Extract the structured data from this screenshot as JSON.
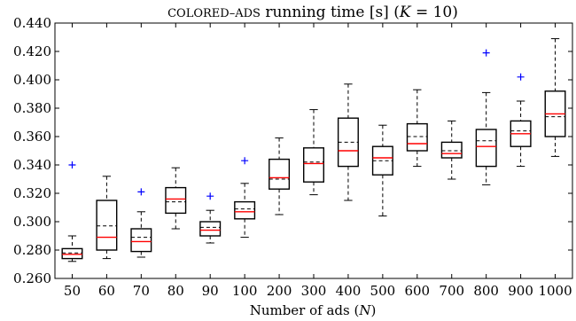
{
  "chart_data": {
    "type": "box",
    "title_prefix": "COLORED–ADS",
    "title_suffix": " running time [s] (",
    "title_var": "K",
    "title_eq": " = 10)",
    "xlabel_prefix": "Number of ads (",
    "xlabel_var": "N",
    "xlabel_suffix": ")",
    "ylim": [
      0.26,
      0.44
    ],
    "yticks": [
      "0.260",
      "0.280",
      "0.300",
      "0.320",
      "0.340",
      "0.360",
      "0.380",
      "0.400",
      "0.420",
      "0.440"
    ],
    "categories": [
      "50",
      "60",
      "70",
      "80",
      "90",
      "100",
      "200",
      "300",
      "400",
      "500",
      "600",
      "700",
      "800",
      "900",
      "1000"
    ],
    "boxes": [
      {
        "category": "50",
        "whisker_low": 0.272,
        "q1": 0.274,
        "median": 0.277,
        "mean": 0.278,
        "q3": 0.281,
        "whisker_high": 0.29,
        "outliers": [
          0.34
        ]
      },
      {
        "category": "60",
        "whisker_low": 0.274,
        "q1": 0.28,
        "median": 0.289,
        "mean": 0.297,
        "q3": 0.315,
        "whisker_high": 0.332,
        "outliers": []
      },
      {
        "category": "70",
        "whisker_low": 0.275,
        "q1": 0.279,
        "median": 0.286,
        "mean": 0.289,
        "q3": 0.295,
        "whisker_high": 0.307,
        "outliers": [
          0.321
        ]
      },
      {
        "category": "80",
        "whisker_low": 0.295,
        "q1": 0.306,
        "median": 0.316,
        "mean": 0.314,
        "q3": 0.324,
        "whisker_high": 0.338,
        "outliers": []
      },
      {
        "category": "90",
        "whisker_low": 0.285,
        "q1": 0.29,
        "median": 0.294,
        "mean": 0.296,
        "q3": 0.3,
        "whisker_high": 0.308,
        "outliers": [
          0.318
        ]
      },
      {
        "category": "100",
        "whisker_low": 0.289,
        "q1": 0.302,
        "median": 0.307,
        "mean": 0.309,
        "q3": 0.314,
        "whisker_high": 0.327,
        "outliers": [
          0.343
        ]
      },
      {
        "category": "200",
        "whisker_low": 0.305,
        "q1": 0.323,
        "median": 0.331,
        "mean": 0.33,
        "q3": 0.344,
        "whisker_high": 0.359,
        "outliers": []
      },
      {
        "category": "300",
        "whisker_low": 0.319,
        "q1": 0.328,
        "median": 0.341,
        "mean": 0.342,
        "q3": 0.352,
        "whisker_high": 0.379,
        "outliers": []
      },
      {
        "category": "400",
        "whisker_low": 0.315,
        "q1": 0.339,
        "median": 0.35,
        "mean": 0.356,
        "q3": 0.373,
        "whisker_high": 0.397,
        "outliers": []
      },
      {
        "category": "500",
        "whisker_low": 0.304,
        "q1": 0.333,
        "median": 0.345,
        "mean": 0.343,
        "q3": 0.353,
        "whisker_high": 0.368,
        "outliers": []
      },
      {
        "category": "600",
        "whisker_low": 0.339,
        "q1": 0.35,
        "median": 0.355,
        "mean": 0.36,
        "q3": 0.369,
        "whisker_high": 0.393,
        "outliers": []
      },
      {
        "category": "700",
        "whisker_low": 0.33,
        "q1": 0.345,
        "median": 0.348,
        "mean": 0.35,
        "q3": 0.356,
        "whisker_high": 0.371,
        "outliers": []
      },
      {
        "category": "800",
        "whisker_low": 0.326,
        "q1": 0.339,
        "median": 0.353,
        "mean": 0.357,
        "q3": 0.365,
        "whisker_high": 0.391,
        "outliers": [
          0.419
        ]
      },
      {
        "category": "900",
        "whisker_low": 0.339,
        "q1": 0.353,
        "median": 0.362,
        "mean": 0.364,
        "q3": 0.371,
        "whisker_high": 0.385,
        "outliers": [
          0.402
        ]
      },
      {
        "category": "1000",
        "whisker_low": 0.346,
        "q1": 0.36,
        "median": 0.376,
        "mean": 0.374,
        "q3": 0.392,
        "whisker_high": 0.429,
        "outliers": []
      }
    ],
    "colors": {
      "box": "#000000",
      "median": "#ff0000",
      "mean": "#000000",
      "outlier": "#0000ff",
      "axes": "#000000"
    }
  }
}
